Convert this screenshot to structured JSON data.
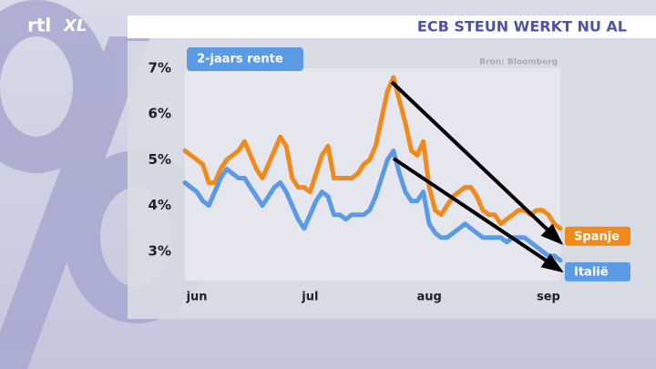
{
  "logo": [
    "rtl",
    "XL"
  ],
  "chart_data": {
    "type": "line",
    "title": "ECB STEUN WERKT NU AL",
    "subtitle": "2-jaars rente",
    "source": "Bron: Bloomberg",
    "categories": [
      null,
      null,
      "jun",
      null,
      null,
      null,
      null,
      null,
      null,
      null,
      null,
      null,
      null,
      null,
      null,
      null,
      null,
      null,
      null,
      null,
      null,
      "jul",
      null,
      null,
      null,
      null,
      null,
      null,
      null,
      null,
      null,
      null,
      null,
      null,
      null,
      null,
      null,
      null,
      null,
      null,
      null,
      "aug",
      null,
      null,
      null,
      null,
      null,
      null,
      null,
      null,
      null,
      null,
      null,
      null,
      null,
      null,
      null,
      null,
      null,
      null,
      null,
      "sep",
      null,
      null
    ],
    "series": [
      {
        "name": "Spanje",
        "color": "#f08a1c",
        "values": [
          5.2,
          5.1,
          5.0,
          4.9,
          4.5,
          4.5,
          4.8,
          5.0,
          5.1,
          5.2,
          5.4,
          5.1,
          4.8,
          4.6,
          4.9,
          5.2,
          5.5,
          5.3,
          4.6,
          4.4,
          4.4,
          4.3,
          4.7,
          5.1,
          5.3,
          4.6,
          4.6,
          4.6,
          4.6,
          4.7,
          4.9,
          5.0,
          5.3,
          5.9,
          6.5,
          6.8,
          6.3,
          5.8,
          5.2,
          5.1,
          5.4,
          4.4,
          3.9,
          3.8,
          4.0,
          4.2,
          4.3,
          4.4,
          4.4,
          4.2,
          3.9,
          3.8,
          3.8,
          3.6,
          3.7,
          3.8,
          3.9,
          3.9,
          3.8,
          3.9,
          3.9,
          3.8,
          3.6,
          3.5
        ]
      },
      {
        "name": "Italië",
        "color": "#5b9be6",
        "values": [
          4.5,
          4.4,
          4.3,
          4.1,
          4.0,
          4.3,
          4.6,
          4.8,
          4.7,
          4.6,
          4.6,
          4.4,
          4.2,
          4.0,
          4.2,
          4.4,
          4.5,
          4.3,
          4.0,
          3.7,
          3.5,
          3.8,
          4.1,
          4.3,
          4.2,
          3.8,
          3.8,
          3.7,
          3.8,
          3.8,
          3.8,
          3.9,
          4.2,
          4.6,
          5.0,
          5.2,
          4.7,
          4.3,
          4.1,
          4.1,
          4.3,
          3.6,
          3.4,
          3.3,
          3.3,
          3.4,
          3.5,
          3.6,
          3.5,
          3.4,
          3.3,
          3.3,
          3.3,
          3.3,
          3.2,
          3.3,
          3.3,
          3.3,
          3.2,
          3.1,
          3.0,
          2.9,
          2.9,
          2.8
        ]
      }
    ],
    "ylim": [
      2.36,
      7.0
    ],
    "yticks": [
      {
        "value": 3,
        "label": "3%"
      },
      {
        "value": 4,
        "label": "4%"
      },
      {
        "value": 5,
        "label": "5%"
      },
      {
        "value": 6,
        "label": "6%"
      },
      {
        "value": 7,
        "label": "7%"
      }
    ],
    "grid": false
  }
}
